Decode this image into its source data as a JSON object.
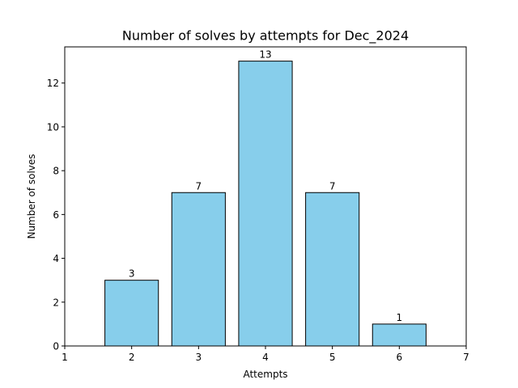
{
  "chart_data": {
    "type": "bar",
    "title": "Number of solves by attempts for Dec_2024",
    "xlabel": "Attempts",
    "ylabel": "Number of solves",
    "x": [
      2,
      3,
      4,
      5,
      6
    ],
    "values": [
      3,
      7,
      13,
      7,
      1
    ],
    "data_labels": [
      "3",
      "7",
      "13",
      "7",
      "1"
    ],
    "xlim": [
      1,
      7
    ],
    "ylim": [
      0,
      13.65
    ],
    "xticks": [
      1,
      2,
      3,
      4,
      5,
      6,
      7
    ],
    "yticks": [
      0,
      2,
      4,
      6,
      8,
      10,
      12
    ],
    "bar_width": 0.8,
    "bar_color": "#87ceeb",
    "edge_color": "#000000",
    "grid": false,
    "legend": "none"
  }
}
